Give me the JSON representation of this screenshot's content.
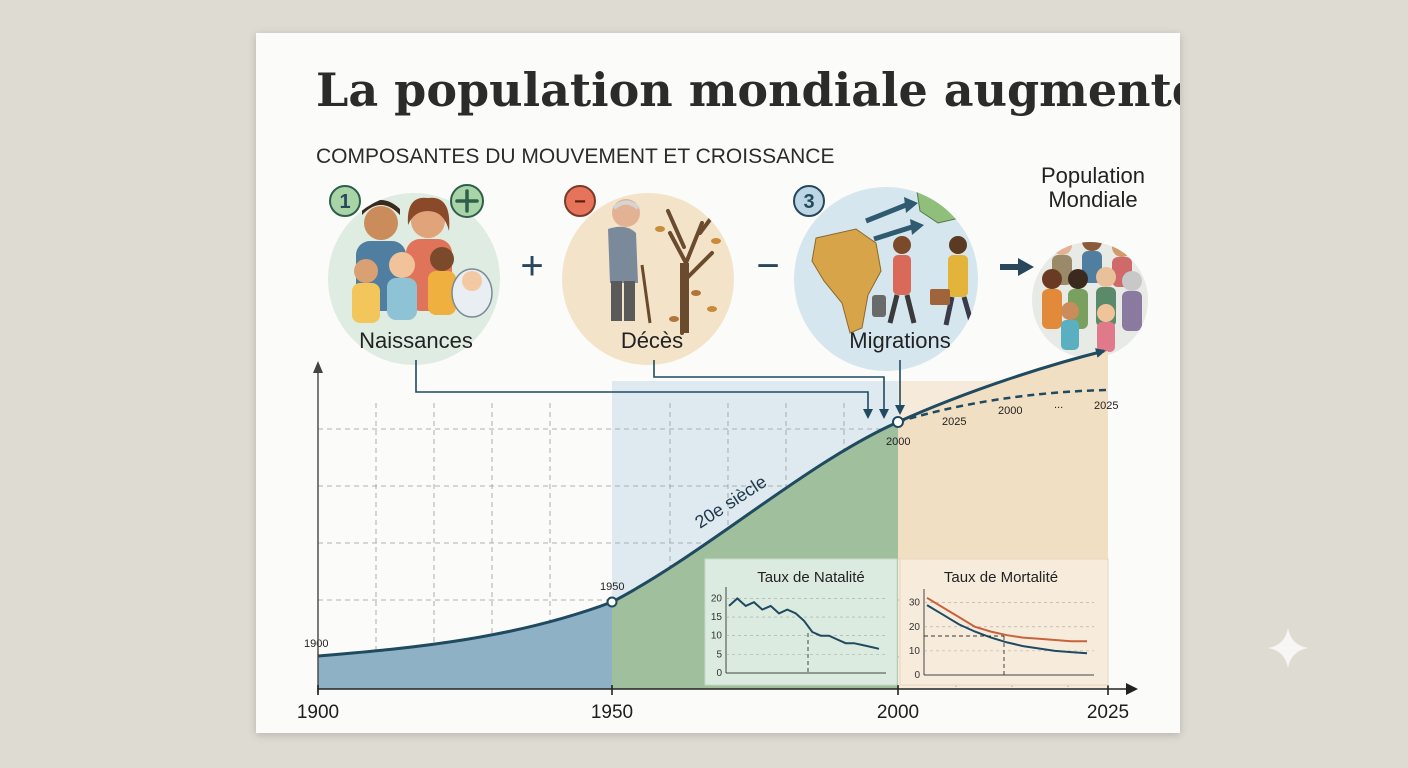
{
  "title": "La population mondiale augmente",
  "subtitle": "COMPOSANTES DU MOUVEMENT ET CROISSANCE",
  "components": [
    {
      "badge": "1",
      "label": "Naissances",
      "sign": "+",
      "illustration": "family-with-babies"
    },
    {
      "badge": "−",
      "label": "Décès",
      "illustration": "elderly-man-and-bare-tree"
    },
    {
      "badge": "3",
      "label": "Migrations",
      "illustration": "africa-europe-migrants"
    }
  ],
  "operators": [
    "+",
    "−"
  ],
  "result": {
    "label_line1": "Population",
    "label_line2": "Mondiale",
    "illustration": "crowd-of-people"
  },
  "main_chart": {
    "x_ticks": [
      "1900",
      "1950",
      "2000",
      "2025"
    ],
    "point_labels": {
      "p1900": "1900",
      "p1950": "1950",
      "p2000": "2000"
    },
    "projection_labels": [
      "2025",
      "2000",
      "...",
      "2025"
    ],
    "curve_label": "20e siècle",
    "colors": {
      "era1": "#8fb1c6",
      "era2": "#9fbf9d",
      "era3": "#f1dfc3",
      "curve": "#1f4a60"
    }
  },
  "chart_data": [
    {
      "type": "line",
      "title": "Taux de Natalité",
      "yticks": [
        0,
        5,
        10,
        15,
        20
      ],
      "ylim": [
        0,
        22
      ],
      "series": [
        {
          "values": [
            18,
            20,
            18,
            19,
            17,
            18,
            16,
            17,
            16,
            14,
            11,
            10,
            10,
            9,
            8,
            8,
            7.5,
            7,
            6.5
          ]
        }
      ]
    },
    {
      "type": "line",
      "title": "Taux de Mortalité",
      "yticks": [
        0,
        10,
        20,
        30
      ],
      "ylim": [
        0,
        34
      ],
      "series": [
        {
          "color": "#c8623c",
          "values": [
            32,
            28,
            24,
            20,
            18,
            16.5,
            15.5,
            15,
            14.5,
            14,
            14
          ]
        },
        {
          "color": "#1f4a60",
          "values": [
            29,
            25,
            21,
            18,
            15.5,
            13.5,
            12,
            11,
            10,
            9.5,
            9
          ]
        }
      ]
    }
  ]
}
